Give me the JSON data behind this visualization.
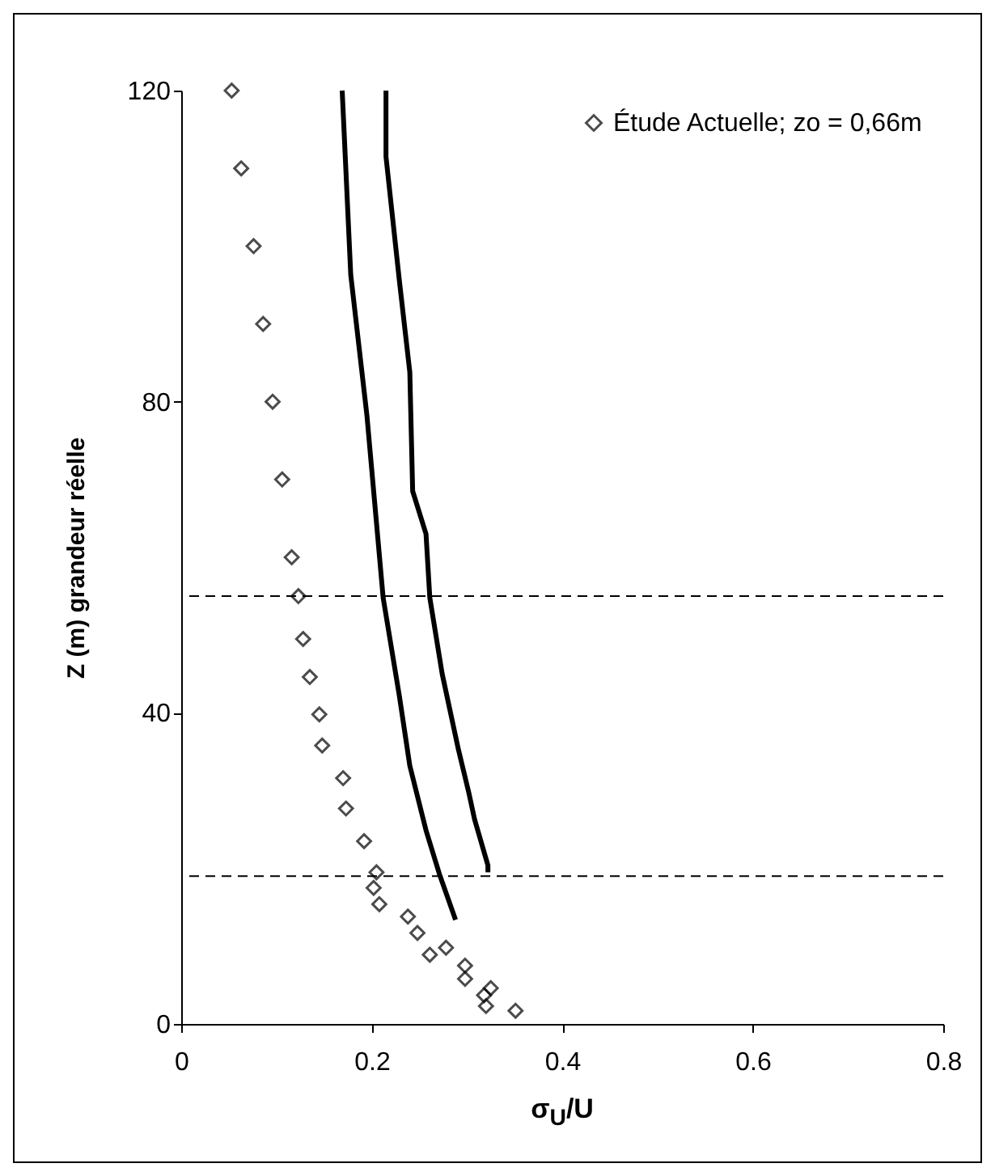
{
  "chart_data": {
    "type": "scatter",
    "xlabel": "σ$_{U}$/U",
    "ylabel": "Z (m) grandeur réelle",
    "xlim": [
      0,
      0.8
    ],
    "xticks": [
      0,
      0.2,
      0.4,
      0.6,
      0.8
    ],
    "ylim": [
      0,
      120
    ],
    "yticks": [
      0,
      40,
      80,
      120
    ],
    "grid": false,
    "legend": "top right",
    "series": [
      {
        "name": "Étude Actuelle; zo = 0,66m",
        "marker": "diamond",
        "color": "#000000",
        "x": [
          0.053,
          0.063,
          0.076,
          0.086,
          0.096,
          0.106,
          0.116,
          0.123,
          0.128,
          0.135,
          0.145,
          0.148,
          0.17,
          0.173,
          0.192,
          0.205,
          0.202,
          0.208,
          0.238,
          0.248,
          0.261,
          0.278,
          0.298,
          0.298,
          0.318,
          0.325,
          0.32,
          0.351
        ],
        "values": [
          120,
          110,
          100,
          90,
          80,
          70,
          60,
          55,
          49.5,
          44.6,
          39.8,
          35.8,
          31.6,
          27.7,
          23.5,
          19.5,
          17.5,
          15.4,
          13.8,
          11.7,
          8.9,
          9.8,
          7.5,
          5.8,
          3.7,
          4.6,
          2.3,
          1.7
        ]
      },
      {
        "type": "line",
        "color": "#000000",
        "line_style": "solid",
        "x": [
          0.169,
          0.178,
          0.195,
          0.212,
          0.229,
          0.24,
          0.257,
          0.271,
          0.288
        ],
        "values": [
          120,
          96.3,
          78.2,
          54.8,
          42.2,
          33.2,
          24.9,
          19.3,
          13.4
        ]
      },
      {
        "type": "line",
        "color": "#000000",
        "line_style": "solid",
        "x": [
          0.215,
          0.215,
          0.229,
          0.24,
          0.243,
          0.257,
          0.261,
          0.274,
          0.291,
          0.302,
          0.308,
          0.322,
          0.322
        ],
        "values": [
          120,
          111.5,
          95.6,
          83.8,
          68.5,
          63,
          54.8,
          45,
          35.3,
          29.7,
          26.3,
          20.4,
          19.5
        ]
      }
    ],
    "ref_lines": [
      {
        "axis": "y",
        "value": 55,
        "line_style": "dashed",
        "color": "#000000"
      },
      {
        "axis": "y",
        "value": 19,
        "line_style": "dashed",
        "color": "#000000"
      }
    ]
  }
}
